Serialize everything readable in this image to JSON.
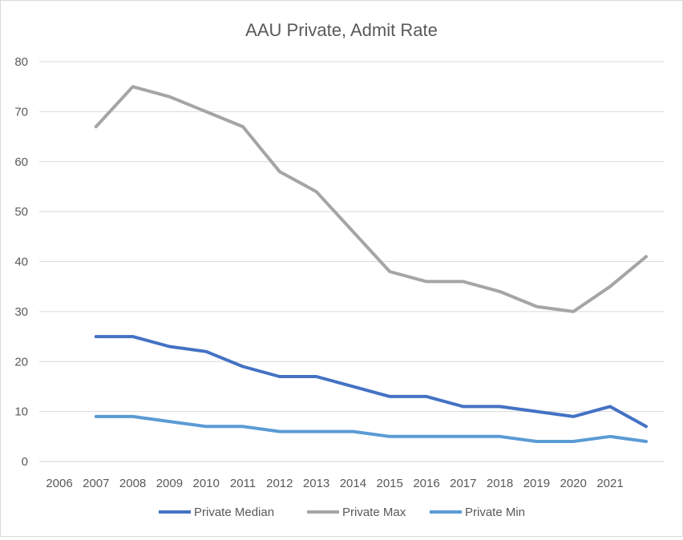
{
  "chart_data": {
    "type": "line",
    "title": "AAU Private, Admit Rate",
    "xlabel": "",
    "ylabel": "",
    "x_tick_labels": [
      "2006",
      "2007",
      "2008",
      "2009",
      "2010",
      "2011",
      "2012",
      "2013",
      "2014",
      "2015",
      "2016",
      "2017",
      "2018",
      "2019",
      "2020",
      "2021"
    ],
    "y_tick_labels": [
      "0",
      "10",
      "20",
      "30",
      "40",
      "50",
      "60",
      "70",
      "80"
    ],
    "ylim": [
      0,
      80
    ],
    "grid": "horizontal",
    "legend_position": "bottom",
    "series": [
      {
        "name": "Private Median",
        "color": "#4472c4",
        "values": [
          25,
          25,
          23,
          22,
          19,
          17,
          17,
          15,
          13,
          13,
          11,
          11,
          10,
          9,
          11,
          7
        ]
      },
      {
        "name": "Private Max",
        "color": "#a5a5a5",
        "values": [
          67,
          75,
          73,
          70,
          67,
          58,
          54,
          46,
          38,
          36,
          36,
          34,
          31,
          30,
          35,
          41
        ]
      },
      {
        "name": "Private Min",
        "color": "#5b9bd5",
        "values": [
          9,
          9,
          8,
          7,
          7,
          6,
          6,
          6,
          5,
          5,
          5,
          5,
          4,
          4,
          5,
          4
        ]
      }
    ]
  }
}
